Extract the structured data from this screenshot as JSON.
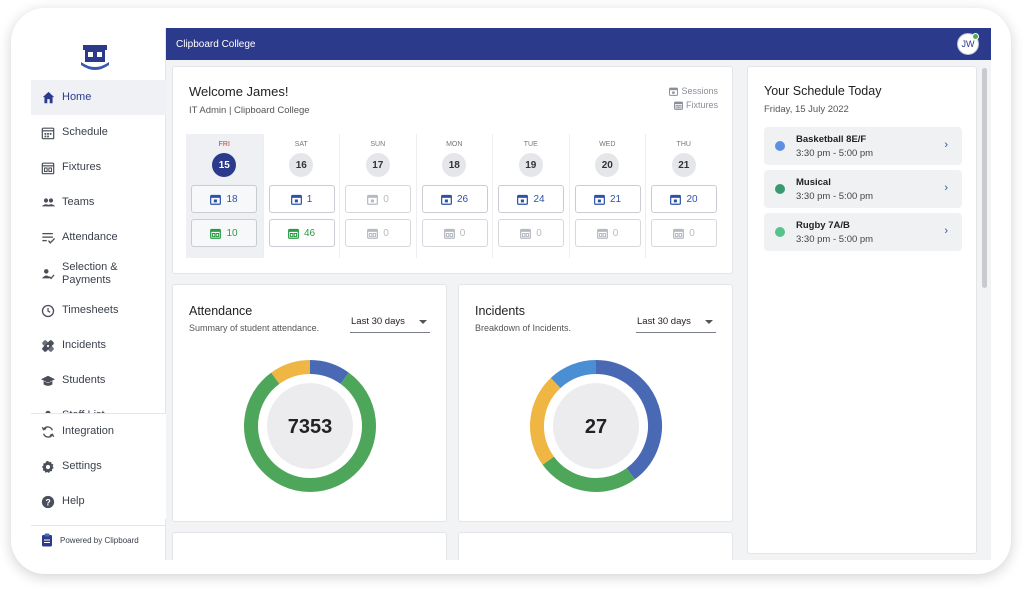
{
  "app": {
    "title": "Clipboard College",
    "user_initials": "JW"
  },
  "sidebar": {
    "items": [
      {
        "label": "Home",
        "icon": "home-icon",
        "active": true
      },
      {
        "label": "Schedule",
        "icon": "calendar-grid-icon"
      },
      {
        "label": "Fixtures",
        "icon": "fixtures-calendar-icon"
      },
      {
        "label": "Teams",
        "icon": "group-icon"
      },
      {
        "label": "Attendance",
        "icon": "checklist-icon"
      },
      {
        "label": "Selection &\nPayments",
        "icon": "person-check-icon"
      },
      {
        "label": "Timesheets",
        "icon": "clock-icon"
      },
      {
        "label": "Incidents",
        "icon": "bandage-icon"
      },
      {
        "label": "Students",
        "icon": "graduation-cap-icon"
      },
      {
        "label": "Staff List",
        "icon": "person-icon"
      }
    ],
    "bottom_items": [
      {
        "label": "Integration",
        "icon": "sync-icon"
      },
      {
        "label": "Settings",
        "icon": "gear-icon"
      },
      {
        "label": "Help",
        "icon": "help-icon"
      }
    ],
    "powered_by": "Powered by Clipboard"
  },
  "welcome": {
    "title": "Welcome James!",
    "subtitle": "IT Admin | Clipboard College",
    "legend": {
      "sessions": "Sessions",
      "fixtures": "Fixtures"
    },
    "days": [
      {
        "dow": "FRI",
        "date": "15",
        "sessions": "18",
        "fixtures": "10",
        "today": true
      },
      {
        "dow": "SAT",
        "date": "16",
        "sessions": "1",
        "fixtures": "46"
      },
      {
        "dow": "SUN",
        "date": "17",
        "sessions": "0",
        "fixtures": "0"
      },
      {
        "dow": "MON",
        "date": "18",
        "sessions": "26",
        "fixtures": "0"
      },
      {
        "dow": "TUE",
        "date": "19",
        "sessions": "24",
        "fixtures": "0"
      },
      {
        "dow": "WED",
        "date": "20",
        "sessions": "21",
        "fixtures": "0"
      },
      {
        "dow": "THU",
        "date": "21",
        "sessions": "20",
        "fixtures": "0"
      }
    ]
  },
  "attendance": {
    "title": "Attendance",
    "subtitle": "Summary of student attendance.",
    "range": "Last 30 days",
    "total": "7353",
    "segments": [
      {
        "value": 0.1,
        "color": "#4a69b4"
      },
      {
        "value": 0.8,
        "color": "#4ea65a"
      },
      {
        "value": 0.1,
        "color": "#efb644"
      }
    ]
  },
  "incidents": {
    "title": "Incidents",
    "subtitle": "Breakdown of Incidents.",
    "range": "Last 30 days",
    "total": "27",
    "segments": [
      {
        "value": 0.4,
        "color": "#4a69b4"
      },
      {
        "value": 0.25,
        "color": "#4ea65a"
      },
      {
        "value": 0.23,
        "color": "#efb644"
      },
      {
        "value": 0.12,
        "color": "#4a8fd4"
      }
    ]
  },
  "schedule": {
    "title": "Your Schedule Today",
    "date": "Friday, 15 July 2022",
    "events": [
      {
        "name": "Basketball 8E/F",
        "time": "3:30 pm - 5:00 pm",
        "color": "#5b8fe2"
      },
      {
        "name": "Musical",
        "time": "3:30 pm - 5:00 pm",
        "color": "#3a9a6f"
      },
      {
        "name": "Rugby 7A/B",
        "time": "3:30 pm - 5:00 pm",
        "color": "#55c48a"
      }
    ]
  }
}
